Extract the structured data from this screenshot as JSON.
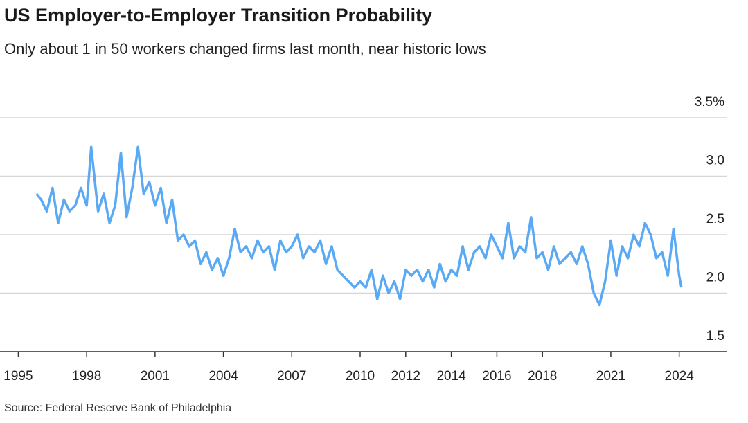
{
  "chart_data": {
    "type": "line",
    "title": "US Employer-to-Employer Transition Probability",
    "subtitle": "Only about 1 in 50 workers changed firms last month, near historic lows",
    "source": "Source: Federal Reserve Bank of Philadelphia",
    "x": [
      1995.8,
      1996,
      1996.25,
      1996.5,
      1996.75,
      1997,
      1997.25,
      1997.5,
      1997.75,
      1998,
      1998.2,
      1998.5,
      1998.75,
      1999,
      1999.25,
      1999.5,
      1999.75,
      2000,
      2000.25,
      2000.5,
      2000.75,
      2001,
      2001.25,
      2001.5,
      2001.75,
      2002,
      2002.25,
      2002.5,
      2002.75,
      2003,
      2003.25,
      2003.5,
      2003.75,
      2004,
      2004.25,
      2004.5,
      2004.75,
      2005,
      2005.25,
      2005.5,
      2005.75,
      2006,
      2006.25,
      2006.5,
      2006.75,
      2007,
      2007.25,
      2007.5,
      2007.75,
      2008,
      2008.25,
      2008.5,
      2008.75,
      2009,
      2009.25,
      2009.5,
      2009.75,
      2010,
      2010.25,
      2010.5,
      2010.75,
      2011,
      2011.25,
      2011.5,
      2011.75,
      2012,
      2012.25,
      2012.5,
      2012.75,
      2013,
      2013.25,
      2013.5,
      2013.75,
      2014,
      2014.25,
      2014.5,
      2014.75,
      2015,
      2015.25,
      2015.5,
      2015.75,
      2016,
      2016.25,
      2016.5,
      2016.75,
      2017,
      2017.25,
      2017.5,
      2017.75,
      2018,
      2018.25,
      2018.5,
      2018.75,
      2019,
      2019.25,
      2019.5,
      2019.75,
      2020,
      2020.25,
      2020.5,
      2020.75,
      2021,
      2021.25,
      2021.5,
      2021.75,
      2022,
      2022.25,
      2022.5,
      2022.75,
      2023,
      2023.25,
      2023.5,
      2023.75,
      2024,
      2024.1
    ],
    "series": [
      {
        "color": "#5aa9f5",
        "values": [
          2.85,
          2.8,
          2.7,
          2.9,
          2.6,
          2.8,
          2.7,
          2.75,
          2.9,
          2.75,
          3.25,
          2.7,
          2.85,
          2.6,
          2.75,
          3.2,
          2.65,
          2.9,
          3.25,
          2.85,
          2.95,
          2.75,
          2.9,
          2.6,
          2.8,
          2.45,
          2.5,
          2.4,
          2.45,
          2.25,
          2.35,
          2.2,
          2.3,
          2.15,
          2.3,
          2.55,
          2.35,
          2.4,
          2.3,
          2.45,
          2.35,
          2.4,
          2.2,
          2.45,
          2.35,
          2.4,
          2.5,
          2.3,
          2.4,
          2.35,
          2.45,
          2.25,
          2.4,
          2.2,
          2.15,
          2.1,
          2.05,
          2.1,
          2.05,
          2.2,
          1.95,
          2.15,
          2.0,
          2.1,
          1.95,
          2.2,
          2.15,
          2.2,
          2.1,
          2.2,
          2.05,
          2.25,
          2.1,
          2.2,
          2.15,
          2.4,
          2.2,
          2.35,
          2.4,
          2.3,
          2.5,
          2.4,
          2.3,
          2.6,
          2.3,
          2.4,
          2.35,
          2.65,
          2.3,
          2.35,
          2.2,
          2.4,
          2.25,
          2.3,
          2.35,
          2.25,
          2.4,
          2.25,
          2.0,
          1.9,
          2.1,
          2.45,
          2.15,
          2.4,
          2.3,
          2.5,
          2.4,
          2.6,
          2.5,
          2.3,
          2.35,
          2.15,
          2.55,
          2.15,
          2.05
        ]
      }
    ],
    "xlim": [
      1994.5,
      2025.5
    ],
    "xticks": [
      1995,
      1998,
      2001,
      2004,
      2007,
      2010,
      2012,
      2014,
      2016,
      2018,
      2021,
      2024
    ],
    "ylim": [
      1.5,
      3.5
    ],
    "yticks": [
      1.5,
      {
        "value": 2,
        "label": "2.0"
      },
      2.5,
      {
        "value": 3,
        "label": "3.0"
      },
      {
        "value": 3.5,
        "label": "3.5%"
      }
    ],
    "grid": true
  }
}
